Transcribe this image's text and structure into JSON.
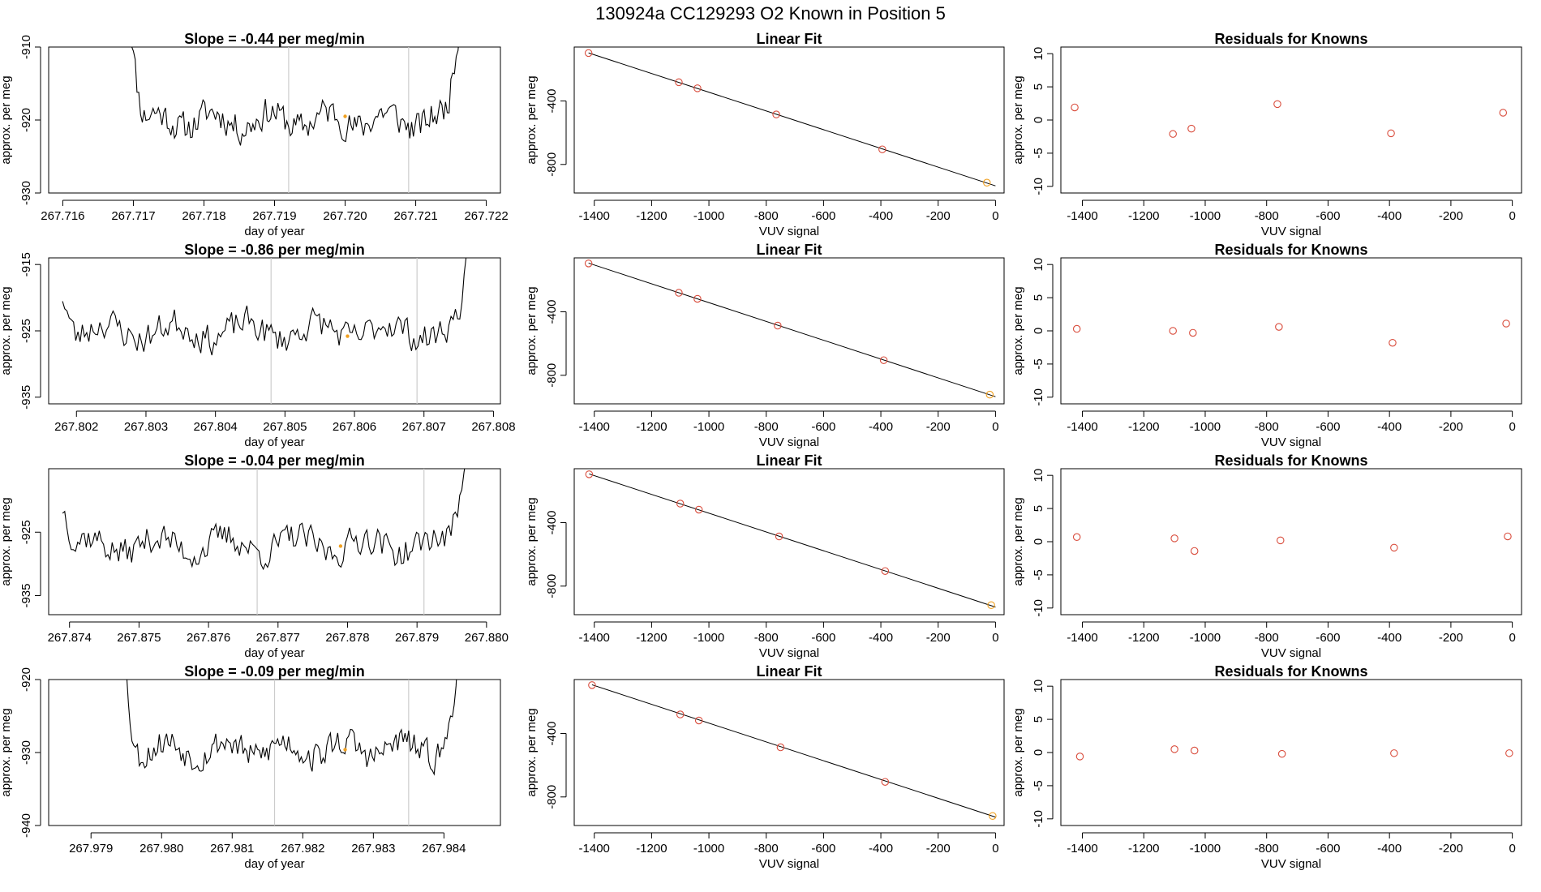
{
  "page": {
    "title": "130924a      CC129293    O2 Known in Position  5"
  },
  "colors": {
    "axis": "#000000",
    "trace": "#000000",
    "marker": "#d94c3c",
    "highlight": "#f0a020",
    "vline": "#cccccc"
  },
  "chart_data": [
    {
      "type": "line",
      "title": "Slope =  -0.44  per meg/min",
      "xlabel": "day of year",
      "ylabel": "approx. per meg",
      "xlim": [
        267.7158,
        267.7222
      ],
      "ylim": [
        -930,
        -910
      ],
      "xticks": [
        "267.716",
        "267.717",
        "267.718",
        "267.719",
        "267.720",
        "267.721",
        "267.722"
      ],
      "yticks": [
        "-930",
        "-920",
        "-910"
      ],
      "trace": {
        "start": 267.7169,
        "end": 267.7217,
        "base": -920,
        "amp": 2.3,
        "seed": 11,
        "rise_left": true,
        "rise_right": true
      },
      "vlines": [
        267.7192,
        267.7209
      ],
      "highlight": {
        "x": 267.72,
        "y": -919.5
      }
    },
    {
      "type": "scatter",
      "title": "Linear Fit",
      "xlabel": "VUV signal",
      "ylabel": "approx. per meg",
      "xlim": [
        -1470,
        30
      ],
      "ylim": [
        -980,
        -60
      ],
      "xticks": [
        "-1400",
        "-1200",
        "-1000",
        "-800",
        "-600",
        "-400",
        "-200",
        "0"
      ],
      "yticks": [
        "-800",
        "-400"
      ],
      "points": [
        [
          -1420,
          -98
        ],
        [
          -1105,
          -282
        ],
        [
          -1040,
          -320
        ],
        [
          -765,
          -485
        ],
        [
          -395,
          -705
        ],
        [
          -30,
          -915
        ]
      ],
      "fit": [
        [
          -1420,
          -97
        ],
        [
          0,
          -935
        ]
      ],
      "highlight_index": 5
    },
    {
      "type": "scatter",
      "title": "Residuals for Knowns",
      "xlabel": "VUV signal",
      "ylabel": "approx. per meg",
      "xlim": [
        -1470,
        30
      ],
      "ylim": [
        -11,
        11
      ],
      "xticks": [
        "-1400",
        "-1200",
        "-1000",
        "-800",
        "-600",
        "-400",
        "-200",
        "0"
      ],
      "yticks": [
        "-10",
        "-5",
        "0",
        "5",
        "10"
      ],
      "points": [
        [
          -1425,
          1.9
        ],
        [
          -1105,
          -2.1
        ],
        [
          -1045,
          -1.3
        ],
        [
          -765,
          2.4
        ],
        [
          -395,
          -2.0
        ],
        [
          -30,
          1.1
        ]
      ]
    },
    {
      "type": "line",
      "title": "Slope =  -0.86  per meg/min",
      "xlabel": "day of year",
      "ylabel": "approx. per meg",
      "xlim": [
        267.8016,
        267.8081
      ],
      "ylim": [
        -936,
        -914
      ],
      "xticks": [
        "267.802",
        "267.803",
        "267.804",
        "267.805",
        "267.806",
        "267.807",
        "267.808"
      ],
      "yticks": [
        "-935",
        "-925",
        "-915"
      ],
      "trace": {
        "start": 267.8018,
        "end": 267.8078,
        "base": -925,
        "amp": 2.5,
        "seed": 23,
        "rise_left": false,
        "rise_right": true
      },
      "vlines": [
        267.8048,
        267.8069
      ],
      "highlight": {
        "x": 267.8059,
        "y": -925.8
      }
    },
    {
      "type": "scatter",
      "title": "Linear Fit",
      "xlabel": "VUV signal",
      "ylabel": "approx. per meg",
      "xlim": [
        -1470,
        30
      ],
      "ylim": [
        -980,
        -60
      ],
      "xticks": [
        "-1400",
        "-1200",
        "-1000",
        "-800",
        "-600",
        "-400",
        "-200",
        "0"
      ],
      "yticks": [
        "-800",
        "-400"
      ],
      "points": [
        [
          -1420,
          -95
        ],
        [
          -1105,
          -280
        ],
        [
          -1040,
          -318
        ],
        [
          -760,
          -487
        ],
        [
          -390,
          -705
        ],
        [
          -20,
          -922
        ]
      ],
      "fit": [
        [
          -1420,
          -93
        ],
        [
          0,
          -935
        ]
      ],
      "highlight_index": 5
    },
    {
      "type": "scatter",
      "title": "Residuals for Knowns",
      "xlabel": "VUV signal",
      "ylabel": "approx. per meg",
      "xlim": [
        -1470,
        30
      ],
      "ylim": [
        -11,
        11
      ],
      "xticks": [
        "-1400",
        "-1200",
        "-1000",
        "-800",
        "-600",
        "-400",
        "-200",
        "0"
      ],
      "yticks": [
        "-10",
        "-5",
        "0",
        "5",
        "10"
      ],
      "points": [
        [
          -1418,
          0.3
        ],
        [
          -1105,
          0.0
        ],
        [
          -1040,
          -0.3
        ],
        [
          -760,
          0.6
        ],
        [
          -390,
          -1.8
        ],
        [
          -20,
          1.1
        ]
      ]
    },
    {
      "type": "line",
      "title": "Slope =  -0.04  per meg/min",
      "xlabel": "day of year",
      "ylabel": "approx. per meg",
      "xlim": [
        267.8737,
        267.8802
      ],
      "ylim": [
        -938,
        -915
      ],
      "xticks": [
        "267.874",
        "267.875",
        "267.876",
        "267.877",
        "267.878",
        "267.879",
        "267.880"
      ],
      "yticks": [
        "-935",
        "-925"
      ],
      "trace": {
        "start": 267.8739,
        "end": 267.8798,
        "base": -927,
        "amp": 2.6,
        "seed": 37,
        "rise_left": false,
        "rise_right": true
      },
      "vlines": [
        267.8767,
        267.8791
      ],
      "highlight": {
        "x": 267.8779,
        "y": -927.2
      }
    },
    {
      "type": "scatter",
      "title": "Linear Fit",
      "xlabel": "VUV signal",
      "ylabel": "approx. per meg",
      "xlim": [
        -1470,
        30
      ],
      "ylim": [
        -980,
        -60
      ],
      "xticks": [
        "-1400",
        "-1200",
        "-1000",
        "-800",
        "-600",
        "-400",
        "-200",
        "0"
      ],
      "yticks": [
        "-800",
        "-400"
      ],
      "points": [
        [
          -1418,
          -95
        ],
        [
          -1100,
          -280
        ],
        [
          -1035,
          -318
        ],
        [
          -755,
          -487
        ],
        [
          -385,
          -705
        ],
        [
          -15,
          -920
        ]
      ],
      "fit": [
        [
          -1418,
          -93
        ],
        [
          0,
          -932
        ]
      ],
      "highlight_index": 5
    },
    {
      "type": "scatter",
      "title": "Residuals for Knowns",
      "xlabel": "VUV signal",
      "ylabel": "approx. per meg",
      "xlim": [
        -1470,
        30
      ],
      "ylim": [
        -11,
        11
      ],
      "xticks": [
        "-1400",
        "-1200",
        "-1000",
        "-800",
        "-600",
        "-400",
        "-200",
        "0"
      ],
      "yticks": [
        "-10",
        "-5",
        "0",
        "5",
        "10"
      ],
      "points": [
        [
          -1418,
          0.7
        ],
        [
          -1100,
          0.5
        ],
        [
          -1035,
          -1.4
        ],
        [
          -755,
          0.2
        ],
        [
          -385,
          -0.9
        ],
        [
          -15,
          0.8
        ]
      ]
    },
    {
      "type": "line",
      "title": "Slope =  -0.09  per meg/min",
      "xlabel": "day of year",
      "ylabel": "approx. per meg",
      "xlim": [
        267.9784,
        267.9848
      ],
      "ylim": [
        -940,
        -920
      ],
      "xticks": [
        "267.979",
        "267.980",
        "267.981",
        "267.982",
        "267.983",
        "267.984"
      ],
      "yticks": [
        "-940",
        "-930",
        "-920"
      ],
      "trace": {
        "start": 267.9794,
        "end": 267.9843,
        "base": -929.5,
        "amp": 2.2,
        "seed": 53,
        "rise_left": true,
        "rise_right": true
      },
      "vlines": [
        267.9816,
        267.9835
      ],
      "highlight": {
        "x": 267.9826,
        "y": -929.6
      }
    },
    {
      "type": "scatter",
      "title": "Linear Fit",
      "xlabel": "VUV signal",
      "ylabel": "approx. per meg",
      "xlim": [
        -1470,
        30
      ],
      "ylim": [
        -980,
        -60
      ],
      "xticks": [
        "-1400",
        "-1200",
        "-1000",
        "-800",
        "-600",
        "-400",
        "-200",
        "0"
      ],
      "yticks": [
        "-800",
        "-400"
      ],
      "points": [
        [
          -1408,
          -95
        ],
        [
          -1100,
          -280
        ],
        [
          -1035,
          -318
        ],
        [
          -750,
          -487
        ],
        [
          -385,
          -705
        ],
        [
          -10,
          -920
        ]
      ],
      "fit": [
        [
          -1408,
          -93
        ],
        [
          0,
          -927
        ]
      ],
      "highlight_index": 5
    },
    {
      "type": "scatter",
      "title": "Residuals for Knowns",
      "xlabel": "VUV signal",
      "ylabel": "approx. per meg",
      "xlim": [
        -1470,
        30
      ],
      "ylim": [
        -11,
        11
      ],
      "xticks": [
        "-1400",
        "-1200",
        "-1000",
        "-800",
        "-600",
        "-400",
        "-200",
        "0"
      ],
      "yticks": [
        "-10",
        "-5",
        "0",
        "5",
        "10"
      ],
      "points": [
        [
          -1408,
          -0.6
        ],
        [
          -1100,
          0.5
        ],
        [
          -1035,
          0.3
        ],
        [
          -750,
          -0.2
        ],
        [
          -385,
          -0.1
        ],
        [
          -10,
          -0.1
        ]
      ]
    }
  ]
}
